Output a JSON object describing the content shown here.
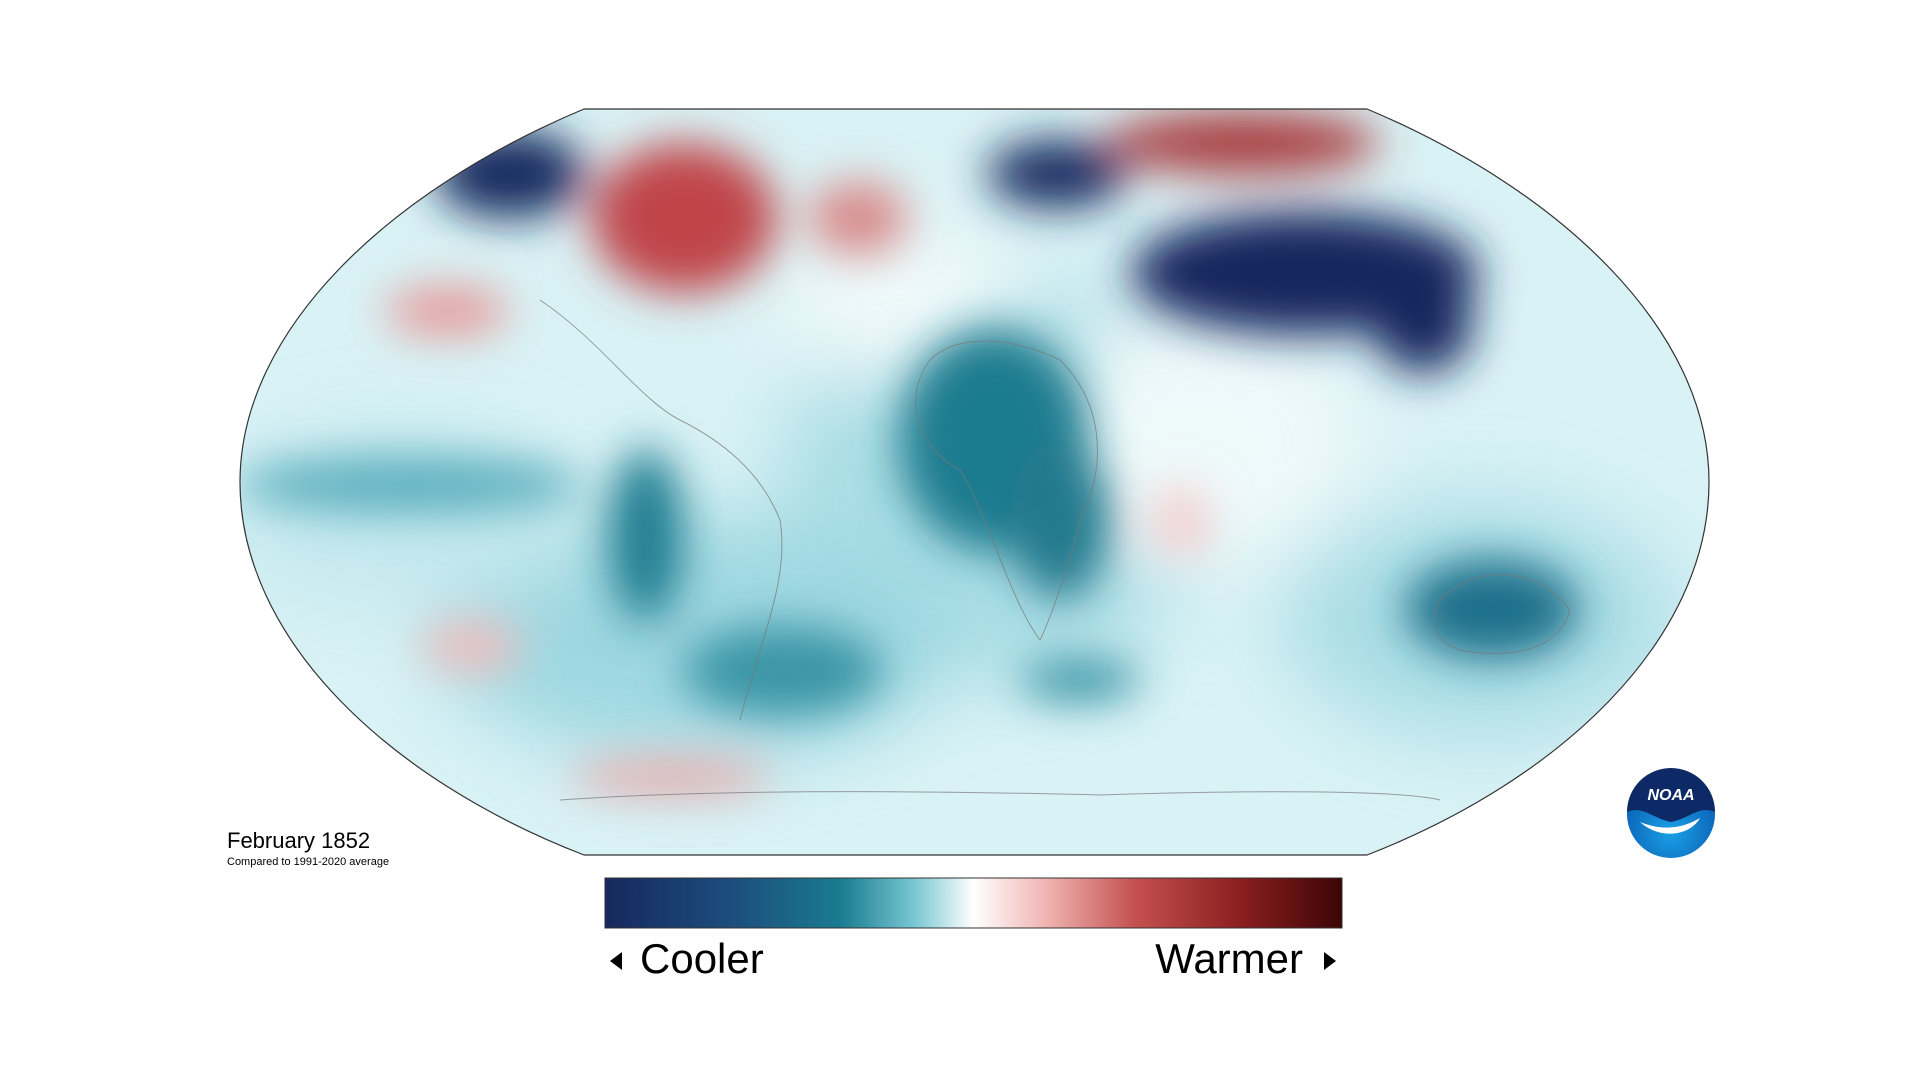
{
  "map": {
    "title": "February 1852",
    "subtitle": "Compared to 1991-2020 average"
  },
  "legend": {
    "low_label": "Cooler",
    "high_label": "Warmer"
  },
  "logo": {
    "text": "NOAA"
  }
}
